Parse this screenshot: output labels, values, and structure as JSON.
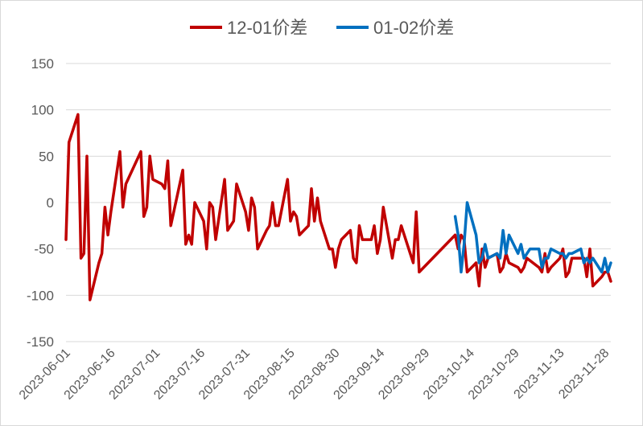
{
  "chart_data": {
    "type": "line",
    "title": "",
    "xlabel": "",
    "ylabel": "",
    "ylim": [
      -150,
      150
    ],
    "yticks": [
      150,
      100,
      50,
      0,
      -50,
      -100,
      -150
    ],
    "xticks": [
      "2023-06-01",
      "2023-06-16",
      "2023-07-01",
      "2023-07-16",
      "2023-07-31",
      "2023-08-15",
      "2023-08-30",
      "2023-09-14",
      "2023-09-29",
      "2023-10-14",
      "2023-10-29",
      "2023-11-13",
      "2023-11-28"
    ],
    "xlim": [
      "2023-06-01",
      "2023-11-30"
    ],
    "grid": "horizontal",
    "legend": "top",
    "series": [
      {
        "name": "12-01价差",
        "color": "#c00000",
        "points": [
          [
            "2023-06-01",
            -40
          ],
          [
            "2023-06-02",
            65
          ],
          [
            "2023-06-05",
            95
          ],
          [
            "2023-06-06",
            -60
          ],
          [
            "2023-06-07",
            -55
          ],
          [
            "2023-06-08",
            50
          ],
          [
            "2023-06-09",
            -105
          ],
          [
            "2023-06-12",
            -65
          ],
          [
            "2023-06-13",
            -55
          ],
          [
            "2023-06-14",
            -5
          ],
          [
            "2023-06-15",
            -35
          ],
          [
            "2023-06-16",
            -10
          ],
          [
            "2023-06-19",
            55
          ],
          [
            "2023-06-20",
            -5
          ],
          [
            "2023-06-21",
            20
          ],
          [
            "2023-06-26",
            55
          ],
          [
            "2023-06-27",
            -15
          ],
          [
            "2023-06-28",
            -5
          ],
          [
            "2023-06-29",
            50
          ],
          [
            "2023-06-30",
            25
          ],
          [
            "2023-07-03",
            20
          ],
          [
            "2023-07-04",
            15
          ],
          [
            "2023-07-05",
            45
          ],
          [
            "2023-07-06",
            -25
          ],
          [
            "2023-07-10",
            35
          ],
          [
            "2023-07-11",
            -45
          ],
          [
            "2023-07-12",
            -35
          ],
          [
            "2023-07-13",
            -45
          ],
          [
            "2023-07-14",
            0
          ],
          [
            "2023-07-17",
            -20
          ],
          [
            "2023-07-18",
            -50
          ],
          [
            "2023-07-19",
            0
          ],
          [
            "2023-07-20",
            -5
          ],
          [
            "2023-07-21",
            -40
          ],
          [
            "2023-07-24",
            25
          ],
          [
            "2023-07-25",
            -30
          ],
          [
            "2023-07-26",
            -25
          ],
          [
            "2023-07-27",
            -20
          ],
          [
            "2023-07-28",
            20
          ],
          [
            "2023-07-31",
            -10
          ],
          [
            "2023-08-01",
            -30
          ],
          [
            "2023-08-02",
            5
          ],
          [
            "2023-08-03",
            -5
          ],
          [
            "2023-08-04",
            -50
          ],
          [
            "2023-08-07",
            -30
          ],
          [
            "2023-08-08",
            -25
          ],
          [
            "2023-08-09",
            0
          ],
          [
            "2023-08-10",
            -25
          ],
          [
            "2023-08-11",
            -25
          ],
          [
            "2023-08-14",
            25
          ],
          [
            "2023-08-15",
            -20
          ],
          [
            "2023-08-16",
            -10
          ],
          [
            "2023-08-17",
            -15
          ],
          [
            "2023-08-18",
            -35
          ],
          [
            "2023-08-21",
            -25
          ],
          [
            "2023-08-22",
            15
          ],
          [
            "2023-08-23",
            -20
          ],
          [
            "2023-08-24",
            5
          ],
          [
            "2023-08-25",
            -20
          ],
          [
            "2023-08-28",
            -50
          ],
          [
            "2023-08-29",
            -50
          ],
          [
            "2023-08-30",
            -70
          ],
          [
            "2023-08-31",
            -50
          ],
          [
            "2023-09-01",
            -40
          ],
          [
            "2023-09-04",
            -30
          ],
          [
            "2023-09-05",
            -60
          ],
          [
            "2023-09-06",
            -65
          ],
          [
            "2023-09-07",
            -25
          ],
          [
            "2023-09-08",
            -40
          ],
          [
            "2023-09-11",
            -40
          ],
          [
            "2023-09-12",
            -25
          ],
          [
            "2023-09-13",
            -55
          ],
          [
            "2023-09-14",
            -40
          ],
          [
            "2023-09-15",
            -5
          ],
          [
            "2023-09-18",
            -60
          ],
          [
            "2023-09-19",
            -40
          ],
          [
            "2023-09-20",
            -40
          ],
          [
            "2023-09-21",
            -25
          ],
          [
            "2023-09-25",
            -65
          ],
          [
            "2023-09-26",
            -10
          ],
          [
            "2023-09-27",
            -75
          ],
          [
            "2023-10-09",
            -35
          ],
          [
            "2023-10-10",
            -50
          ],
          [
            "2023-10-11",
            -35
          ],
          [
            "2023-10-12",
            -40
          ],
          [
            "2023-10-13",
            -75
          ],
          [
            "2023-10-16",
            -65
          ],
          [
            "2023-10-17",
            -90
          ],
          [
            "2023-10-18",
            -50
          ],
          [
            "2023-10-19",
            -70
          ],
          [
            "2023-10-20",
            -60
          ],
          [
            "2023-10-23",
            -55
          ],
          [
            "2023-10-24",
            -75
          ],
          [
            "2023-10-25",
            -70
          ],
          [
            "2023-10-26",
            -55
          ],
          [
            "2023-10-27",
            -65
          ],
          [
            "2023-10-30",
            -70
          ],
          [
            "2023-10-31",
            -75
          ],
          [
            "2023-11-01",
            -70
          ],
          [
            "2023-11-02",
            -60
          ],
          [
            "2023-11-06",
            -70
          ],
          [
            "2023-11-07",
            -75
          ],
          [
            "2023-11-08",
            -55
          ],
          [
            "2023-11-09",
            -75
          ],
          [
            "2023-11-10",
            -70
          ],
          [
            "2023-11-13",
            -60
          ],
          [
            "2023-11-14",
            -50
          ],
          [
            "2023-11-15",
            -80
          ],
          [
            "2023-11-16",
            -75
          ],
          [
            "2023-11-17",
            -60
          ],
          [
            "2023-11-20",
            -60
          ],
          [
            "2023-11-21",
            -60
          ],
          [
            "2023-11-22",
            -80
          ],
          [
            "2023-11-23",
            -50
          ],
          [
            "2023-11-24",
            -90
          ],
          [
            "2023-11-27",
            -80
          ],
          [
            "2023-11-28",
            -75
          ],
          [
            "2023-11-29",
            -75
          ],
          [
            "2023-11-30",
            -85
          ]
        ]
      },
      {
        "name": "01-02价差",
        "color": "#0070c0",
        "points": [
          [
            "2023-10-09",
            -15
          ],
          [
            "2023-10-10",
            -35
          ],
          [
            "2023-10-11",
            -75
          ],
          [
            "2023-10-12",
            -45
          ],
          [
            "2023-10-13",
            0
          ],
          [
            "2023-10-16",
            -35
          ],
          [
            "2023-10-17",
            -65
          ],
          [
            "2023-10-18",
            -60
          ],
          [
            "2023-10-19",
            -45
          ],
          [
            "2023-10-20",
            -60
          ],
          [
            "2023-10-23",
            -55
          ],
          [
            "2023-10-24",
            -60
          ],
          [
            "2023-10-25",
            -30
          ],
          [
            "2023-10-26",
            -55
          ],
          [
            "2023-10-27",
            -35
          ],
          [
            "2023-10-30",
            -55
          ],
          [
            "2023-10-31",
            -45
          ],
          [
            "2023-11-01",
            -60
          ],
          [
            "2023-11-02",
            -55
          ],
          [
            "2023-11-03",
            -50
          ],
          [
            "2023-11-06",
            -50
          ],
          [
            "2023-11-07",
            -70
          ],
          [
            "2023-11-08",
            -60
          ],
          [
            "2023-11-09",
            -60
          ],
          [
            "2023-11-10",
            -50
          ],
          [
            "2023-11-13",
            -55
          ],
          [
            "2023-11-14",
            -55
          ],
          [
            "2023-11-15",
            -60
          ],
          [
            "2023-11-16",
            -55
          ],
          [
            "2023-11-17",
            -55
          ],
          [
            "2023-11-20",
            -50
          ],
          [
            "2023-11-21",
            -65
          ],
          [
            "2023-11-22",
            -60
          ],
          [
            "2023-11-23",
            -65
          ],
          [
            "2023-11-24",
            -60
          ],
          [
            "2023-11-27",
            -75
          ],
          [
            "2023-11-28",
            -60
          ],
          [
            "2023-11-29",
            -75
          ],
          [
            "2023-11-30",
            -65
          ]
        ]
      }
    ]
  }
}
